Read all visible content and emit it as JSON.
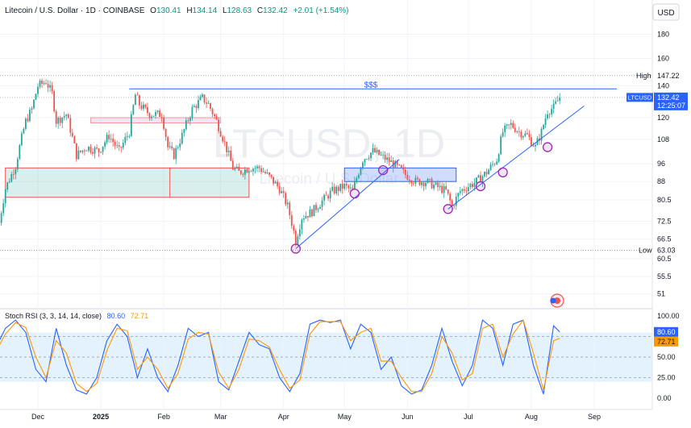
{
  "header": {
    "symbol_desc": "Litecoin / U.S. Dollar · 1D · COINBASE",
    "open_label": "O",
    "open": "130.41",
    "high_label": "H",
    "high": "134.14",
    "low_label": "L",
    "low": "128.63",
    "close_label": "C",
    "close": "132.42",
    "change": "+2.01 (+1.54%)"
  },
  "currency": "USD",
  "watermark": {
    "title": "LTCUSD, 1D",
    "subtitle": "Litecoin / U.S. Dollar"
  },
  "price_marks": {
    "high_label": "High",
    "high_value": "147.22",
    "low_label": "Low",
    "low_value": "63.03",
    "current_symbol": "LTCUSD",
    "current_value": "132.42",
    "countdown": "12:25:07",
    "target_label": "$$$"
  },
  "stoch": {
    "legend": "Stoch RSI (3, 3, 14, 14, close)",
    "k_value": "80.60",
    "d_value": "72.71"
  },
  "colors": {
    "up": "#26a69a",
    "down": "#ef5350",
    "k_line": "#2962ff",
    "d_line": "#ff9800",
    "rsi_band": "#e3f2fd",
    "trendline": "#2962ff",
    "circle": "#9c27b0"
  },
  "chart_data": [
    {
      "type": "candlestick",
      "title": "Litecoin / U.S. Dollar · 1D · COINBASE",
      "ylabel": "USD",
      "y_scale": "log",
      "ylim": [
        48,
        195
      ],
      "y_ticks": [
        180,
        160,
        140,
        120,
        108,
        96,
        88,
        80.5,
        72.5,
        66.5,
        60.5,
        55.5,
        51
      ],
      "x_ticks": [
        "Dec",
        "2025",
        "Feb",
        "Mar",
        "Apr",
        "May",
        "Jun",
        "Jul",
        "Aug",
        "Sep"
      ],
      "x_tick_dates": [
        "2024-12-01",
        "2025-01-01",
        "2025-02-01",
        "2025-03-01",
        "2025-04-01",
        "2025-05-01",
        "2025-06-01",
        "2025-07-01",
        "2025-08-01",
        "2025-09-01"
      ],
      "close_path": [
        [
          "2024-11-12",
          72
        ],
        [
          "2024-11-15",
          85
        ],
        [
          "2024-11-20",
          95
        ],
        [
          "2024-11-25",
          118
        ],
        [
          "2024-11-28",
          125
        ],
        [
          "2024-12-01",
          140
        ],
        [
          "2024-12-05",
          143
        ],
        [
          "2024-12-08",
          135
        ],
        [
          "2024-12-10",
          118
        ],
        [
          "2024-12-15",
          122
        ],
        [
          "2024-12-20",
          100
        ],
        [
          "2024-12-25",
          104
        ],
        [
          "2024-12-31",
          102
        ],
        [
          "2025-01-05",
          110
        ],
        [
          "2025-01-10",
          102
        ],
        [
          "2025-01-15",
          112
        ],
        [
          "2025-01-18",
          134
        ],
        [
          "2025-01-20",
          128
        ],
        [
          "2025-01-25",
          122
        ],
        [
          "2025-01-31",
          122
        ],
        [
          "2025-02-03",
          104
        ],
        [
          "2025-02-06",
          100
        ],
        [
          "2025-02-10",
          110
        ],
        [
          "2025-02-15",
          125
        ],
        [
          "2025-02-20",
          132
        ],
        [
          "2025-02-23",
          128
        ],
        [
          "2025-02-27",
          118
        ],
        [
          "2025-03-03",
          106
        ],
        [
          "2025-03-07",
          94
        ],
        [
          "2025-03-10",
          92
        ],
        [
          "2025-03-15",
          94
        ],
        [
          "2025-03-20",
          94
        ],
        [
          "2025-03-25",
          90
        ],
        [
          "2025-03-30",
          85
        ],
        [
          "2025-04-03",
          78
        ],
        [
          "2025-04-07",
          66
        ],
        [
          "2025-04-10",
          74
        ],
        [
          "2025-04-15",
          76
        ],
        [
          "2025-04-20",
          80
        ],
        [
          "2025-04-25",
          84
        ],
        [
          "2025-05-01",
          86
        ],
        [
          "2025-05-05",
          84
        ],
        [
          "2025-05-10",
          98
        ],
        [
          "2025-05-15",
          102
        ],
        [
          "2025-05-20",
          99
        ],
        [
          "2025-05-25",
          96
        ],
        [
          "2025-05-31",
          91
        ],
        [
          "2025-06-05",
          88
        ],
        [
          "2025-06-10",
          88
        ],
        [
          "2025-06-15",
          86
        ],
        [
          "2025-06-20",
          84
        ],
        [
          "2025-06-23",
          78
        ],
        [
          "2025-06-27",
          84
        ],
        [
          "2025-07-01",
          86
        ],
        [
          "2025-07-05",
          88
        ],
        [
          "2025-07-10",
          92
        ],
        [
          "2025-07-15",
          98
        ],
        [
          "2025-07-18",
          112
        ],
        [
          "2025-07-22",
          116
        ],
        [
          "2025-07-26",
          112
        ],
        [
          "2025-07-30",
          110
        ],
        [
          "2025-08-03",
          104
        ],
        [
          "2025-08-06",
          112
        ],
        [
          "2025-08-09",
          124
        ],
        [
          "2025-08-12",
          126
        ],
        [
          "2025-08-15",
          132.42
        ]
      ],
      "annotations": {
        "resistance_line": 138,
        "high": 147.22,
        "low": 63.03,
        "current": 132.42,
        "supply_zone": {
          "from": "2024-12-27",
          "to": "2025-03-01",
          "low": 117,
          "high": 120
        },
        "demand_zone": {
          "from": "2024-11-15",
          "to": "2025-03-15",
          "low": 81.5,
          "high": 94
        },
        "range_box": {
          "from": "2025-05-01",
          "to": "2025-06-25",
          "low": 88,
          "high": 94
        },
        "trendline_1": [
          [
            "2025-04-07",
            63.5
          ],
          [
            "2025-05-28",
            98
          ]
        ],
        "trendline_2": [
          [
            "2025-06-21",
            77
          ],
          [
            "2025-08-27",
            127
          ]
        ],
        "touch_points": [
          [
            "2025-04-07",
            63.5
          ],
          [
            "2025-05-06",
            83
          ],
          [
            "2025-05-20",
            93
          ],
          [
            "2025-06-21",
            77
          ],
          [
            "2025-07-07",
            86
          ],
          [
            "2025-07-18",
            92
          ],
          [
            "2025-08-09",
            104
          ]
        ]
      }
    },
    {
      "type": "line",
      "title": "Stoch RSI (3, 3, 14, 14, close)",
      "ylim": [
        0,
        100
      ],
      "y_ticks": [
        100,
        75,
        50,
        25,
        0
      ],
      "band": [
        20,
        80
      ],
      "series": [
        {
          "name": "K",
          "values": [
            [
              "2024-11-10",
              60
            ],
            [
              "2024-11-15",
              85
            ],
            [
              "2024-11-20",
              95
            ],
            [
              "2024-11-25",
              80
            ],
            [
              "2024-11-30",
              35
            ],
            [
              "2024-12-05",
              20
            ],
            [
              "2024-12-10",
              85
            ],
            [
              "2024-12-15",
              40
            ],
            [
              "2024-12-20",
              10
            ],
            [
              "2024-12-25",
              5
            ],
            [
              "2024-12-30",
              25
            ],
            [
              "2025-01-04",
              70
            ],
            [
              "2025-01-09",
              90
            ],
            [
              "2025-01-14",
              75
            ],
            [
              "2025-01-19",
              25
            ],
            [
              "2025-01-24",
              60
            ],
            [
              "2025-01-29",
              25
            ],
            [
              "2025-02-03",
              8
            ],
            [
              "2025-02-08",
              40
            ],
            [
              "2025-02-13",
              85
            ],
            [
              "2025-02-18",
              75
            ],
            [
              "2025-02-23",
              80
            ],
            [
              "2025-02-28",
              20
            ],
            [
              "2025-03-05",
              10
            ],
            [
              "2025-03-10",
              45
            ],
            [
              "2025-03-15",
              80
            ],
            [
              "2025-03-20",
              65
            ],
            [
              "2025-03-25",
              60
            ],
            [
              "2025-03-30",
              25
            ],
            [
              "2025-04-04",
              8
            ],
            [
              "2025-04-09",
              30
            ],
            [
              "2025-04-14",
              90
            ],
            [
              "2025-04-19",
              95
            ],
            [
              "2025-04-24",
              92
            ],
            [
              "2025-04-29",
              95
            ],
            [
              "2025-05-04",
              60
            ],
            [
              "2025-05-09",
              90
            ],
            [
              "2025-05-14",
              80
            ],
            [
              "2025-05-19",
              35
            ],
            [
              "2025-05-24",
              50
            ],
            [
              "2025-05-29",
              15
            ],
            [
              "2025-06-03",
              5
            ],
            [
              "2025-06-08",
              10
            ],
            [
              "2025-06-13",
              40
            ],
            [
              "2025-06-18",
              85
            ],
            [
              "2025-06-23",
              45
            ],
            [
              "2025-06-28",
              15
            ],
            [
              "2025-07-03",
              40
            ],
            [
              "2025-07-08",
              95
            ],
            [
              "2025-07-13",
              85
            ],
            [
              "2025-07-18",
              40
            ],
            [
              "2025-07-23",
              90
            ],
            [
              "2025-07-28",
              95
            ],
            [
              "2025-08-02",
              40
            ],
            [
              "2025-08-07",
              5
            ],
            [
              "2025-08-12",
              88
            ],
            [
              "2025-08-15",
              80.6
            ]
          ]
        },
        {
          "name": "D",
          "values": [
            [
              "2024-11-10",
              55
            ],
            [
              "2024-11-15",
              78
            ],
            [
              "2024-11-20",
              92
            ],
            [
              "2024-11-25",
              86
            ],
            [
              "2024-11-30",
              50
            ],
            [
              "2024-12-05",
              25
            ],
            [
              "2024-12-10",
              70
            ],
            [
              "2024-12-15",
              55
            ],
            [
              "2024-12-20",
              18
            ],
            [
              "2024-12-25",
              8
            ],
            [
              "2024-12-30",
              18
            ],
            [
              "2025-01-04",
              58
            ],
            [
              "2025-01-09",
              85
            ],
            [
              "2025-01-14",
              82
            ],
            [
              "2025-01-19",
              35
            ],
            [
              "2025-01-24",
              50
            ],
            [
              "2025-01-29",
              35
            ],
            [
              "2025-02-03",
              12
            ],
            [
              "2025-02-08",
              30
            ],
            [
              "2025-02-13",
              72
            ],
            [
              "2025-02-18",
              80
            ],
            [
              "2025-02-23",
              78
            ],
            [
              "2025-02-28",
              32
            ],
            [
              "2025-03-05",
              12
            ],
            [
              "2025-03-10",
              35
            ],
            [
              "2025-03-15",
              72
            ],
            [
              "2025-03-20",
              70
            ],
            [
              "2025-03-25",
              62
            ],
            [
              "2025-03-30",
              35
            ],
            [
              "2025-04-04",
              12
            ],
            [
              "2025-04-09",
              22
            ],
            [
              "2025-04-14",
              78
            ],
            [
              "2025-04-19",
              93
            ],
            [
              "2025-04-24",
              93
            ],
            [
              "2025-04-29",
              93
            ],
            [
              "2025-05-04",
              70
            ],
            [
              "2025-05-09",
              80
            ],
            [
              "2025-05-14",
              85
            ],
            [
              "2025-05-19",
              45
            ],
            [
              "2025-05-24",
              45
            ],
            [
              "2025-05-29",
              25
            ],
            [
              "2025-06-03",
              8
            ],
            [
              "2025-06-08",
              8
            ],
            [
              "2025-06-13",
              30
            ],
            [
              "2025-06-18",
              75
            ],
            [
              "2025-06-23",
              55
            ],
            [
              "2025-06-28",
              22
            ],
            [
              "2025-07-03",
              30
            ],
            [
              "2025-07-08",
              85
            ],
            [
              "2025-07-13",
              90
            ],
            [
              "2025-07-18",
              50
            ],
            [
              "2025-07-23",
              78
            ],
            [
              "2025-07-28",
              95
            ],
            [
              "2025-08-02",
              55
            ],
            [
              "2025-08-07",
              10
            ],
            [
              "2025-08-12",
              70
            ],
            [
              "2025-08-15",
              72.71
            ]
          ]
        }
      ]
    }
  ]
}
